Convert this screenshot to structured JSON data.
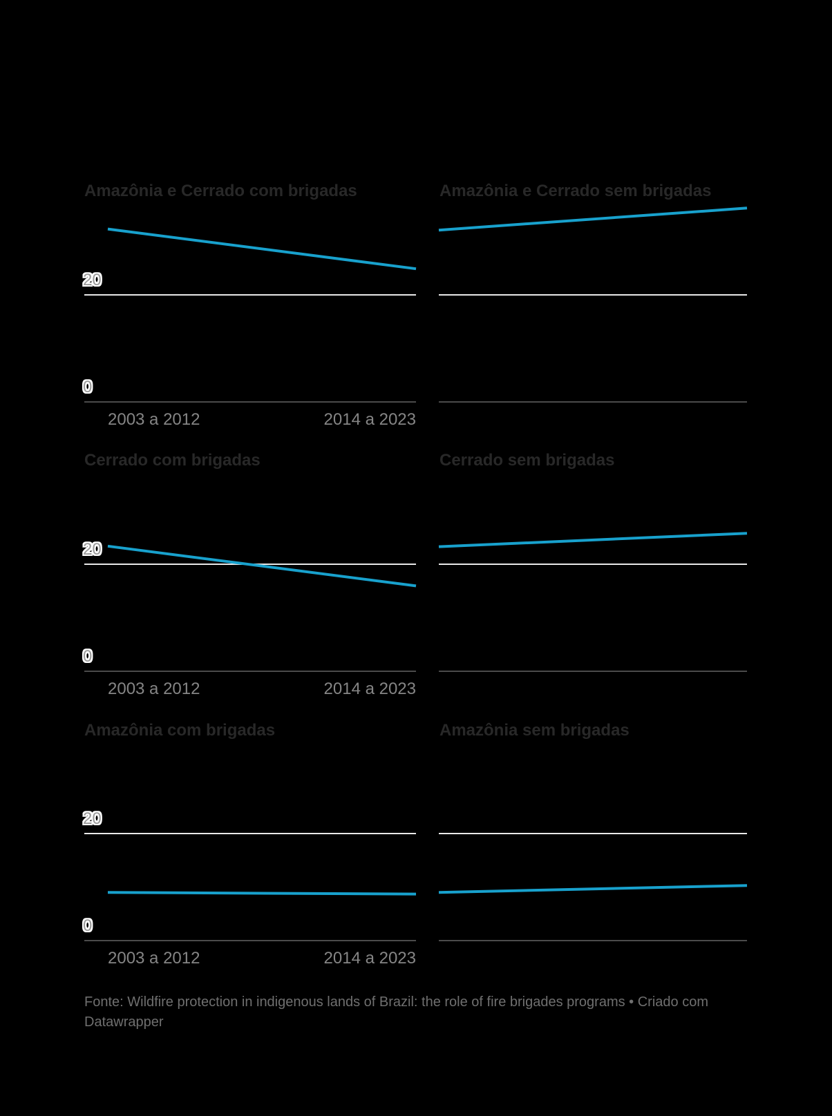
{
  "chart_data": {
    "type": "line",
    "layout": "small-multiples (3 rows x 2 cols)",
    "categories": [
      "2003 a 2012",
      "2014 a 2023"
    ],
    "yticks": [
      {
        "value": 20,
        "label": "20"
      },
      {
        "value": 0,
        "label": "0"
      }
    ],
    "ylim": [
      0,
      40
    ],
    "grid": true,
    "legend": "none",
    "panels": [
      {
        "title": "Amazônia e Cerrado com brigadas",
        "values": [
          32.2,
          24.8
        ]
      },
      {
        "title": "Amazônia e Cerrado sem brigadas",
        "values": [
          32.0,
          36.1
        ]
      },
      {
        "title": "Cerrado com brigadas",
        "values": [
          23.3,
          15.9
        ]
      },
      {
        "title": "Cerrado sem brigadas",
        "values": [
          23.2,
          25.7
        ]
      },
      {
        "title": "Amazônia com brigadas",
        "values": [
          9.0,
          8.7
        ]
      },
      {
        "title": "Amazônia sem brigadas",
        "values": [
          9.0,
          10.3
        ]
      }
    ]
  },
  "footer": {
    "source_text": "Fonte: Wildfire protection in indigenous lands of Brazil: the role of fire brigades programs • Criado com Datawrapper"
  },
  "colors": {
    "background": "#000000",
    "line": "#18a1cd",
    "grid_light": "#e9e9e9",
    "grid_dark": "#4b4b4b",
    "title": "#282828",
    "axis_label": "#9a9a9a",
    "x_label": "#858585",
    "footer": "#6f6f6f",
    "halo": "#ffffff"
  }
}
